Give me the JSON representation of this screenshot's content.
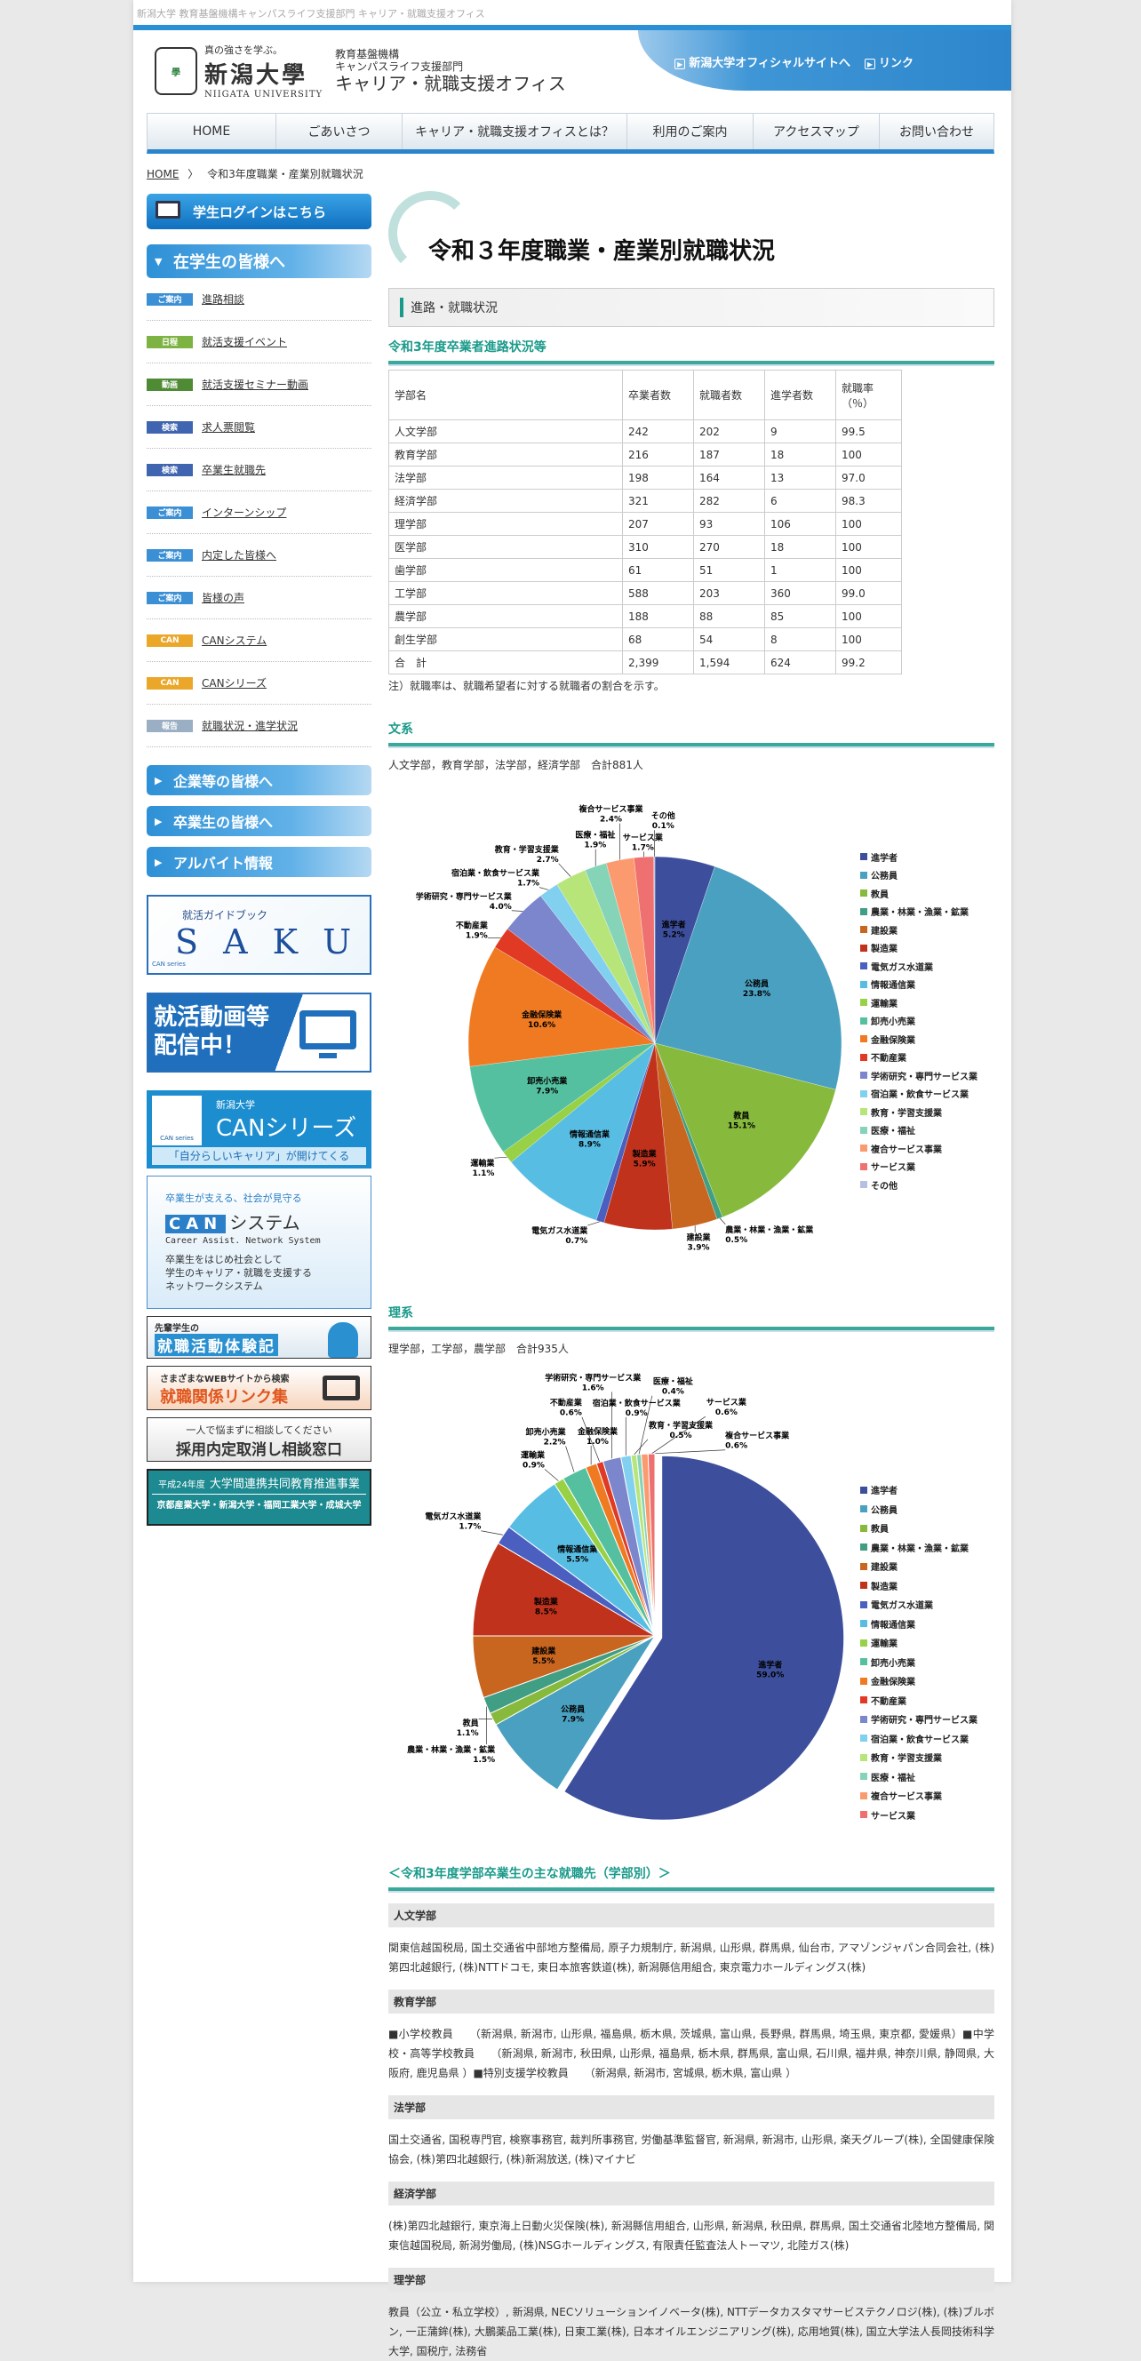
{
  "topstrip": "新潟大学 教育基盤機構キャンパスライフ支援部門 キャリア・就職支援オフィス",
  "logo": {
    "motto": "真の強さを学ぶ。",
    "name": "新潟大學",
    "en": "NIIGATA UNIVERSITY",
    "seal": "學"
  },
  "office": {
    "l1": "教育基盤機構",
    "l2": "キャンパスライフ支援部門",
    "l3": "キャリア・就職支援オフィス"
  },
  "header_links": [
    "新潟大学オフィシャルサイトへ",
    "リンク"
  ],
  "nav": [
    "HOME",
    "ごあいさつ",
    "キャリア・就職支援オフィスとは？",
    "利用のご案内",
    "アクセスマップ",
    "お問い合わせ"
  ],
  "breadcrumb": {
    "home": "HOME",
    "sep": "〉",
    "current": "令和3年度職業・産業別就職状況"
  },
  "sidebar": {
    "login": "学生ログインはこちら",
    "students": "在学生の皆様へ",
    "items": [
      {
        "tag": "ご案内",
        "color": "#3b8fd4",
        "label": "進路相談"
      },
      {
        "tag": "日程",
        "color": "#7cb342",
        "label": "就活支援イベント"
      },
      {
        "tag": "動画",
        "color": "#4f8a34",
        "label": "就活支援セミナー動画"
      },
      {
        "tag": "検索",
        "color": "#3f65b0",
        "label": "求人票閲覧"
      },
      {
        "tag": "検索",
        "color": "#3f65b0",
        "label": "卒業生就職先"
      },
      {
        "tag": "ご案内",
        "color": "#3b8fd4",
        "label": "インターンシップ"
      },
      {
        "tag": "ご案内",
        "color": "#3b8fd4",
        "label": "内定した皆様へ"
      },
      {
        "tag": "ご案内",
        "color": "#3b8fd4",
        "label": "皆様の声"
      },
      {
        "tag": "CAN",
        "color": "#eba72a",
        "label": "CANシステム"
      },
      {
        "tag": "CAN",
        "color": "#eba72a",
        "label": "CANシリーズ"
      },
      {
        "tag": "報告",
        "color": "#9aaec4",
        "label": "就職状況・進学状況"
      }
    ],
    "cats": [
      "企業等の皆様へ",
      "卒業生の皆様へ",
      "アルバイト情報"
    ],
    "saku": {
      "sub": "就活ガイドブック",
      "main": "S A K U",
      "logo": "CAN series"
    },
    "video": {
      "l1": "就活動画等",
      "l2": "配信中！"
    },
    "canseries": {
      "uni": "新潟大学",
      "title": "CANシリーズ",
      "tagline": "「自分らしいキャリア」が開けてくる",
      "logo": "CAN series"
    },
    "cansystem": {
      "top": "卒業生が支える、社会が見守る",
      "title": "CAN",
      "title2": "システム",
      "en": "Career Assist. Network System",
      "d1": "卒業生をはじめ社会として",
      "d2": "学生のキャリア・就職を支援する",
      "d3": "ネットワークシステム"
    },
    "taiken": {
      "sub": "先輩学生の",
      "main": "就職活動体験記"
    },
    "links": {
      "sub": "さまざまなWEBサイトから検索",
      "main": "就職関係リンク集"
    },
    "soudan": {
      "sub": "一人で悩まずに相談してください",
      "main": "採用内定取消し相談窓口"
    },
    "renkei": {
      "year": "平成24年度",
      "main": "大学間連携共同教育推進事業",
      "unis": "京都産業大学・新潟大学・福岡工業大学・成城大学"
    }
  },
  "main": {
    "title": "令和３年度職業・産業別就職状況",
    "section": "進路・就職状況",
    "table_heading": "令和3年度卒業者進路状況等",
    "table": {
      "headers": [
        "学部名",
        "卒業者数",
        "就職者数",
        "進学者数",
        "就職率\n（％）"
      ],
      "rows": [
        [
          "人文学部",
          "242",
          "202",
          "9",
          "99.5"
        ],
        [
          "教育学部",
          "216",
          "187",
          "18",
          "100"
        ],
        [
          "法学部",
          "198",
          "164",
          "13",
          "97.0"
        ],
        [
          "経済学部",
          "321",
          "282",
          "6",
          "98.3"
        ],
        [
          "理学部",
          "207",
          "93",
          "106",
          "100"
        ],
        [
          "医学部",
          "310",
          "270",
          "18",
          "100"
        ],
        [
          "歯学部",
          "61",
          "51",
          "1",
          "100"
        ],
        [
          "工学部",
          "588",
          "203",
          "360",
          "99.0"
        ],
        [
          "農学部",
          "188",
          "88",
          "85",
          "100"
        ],
        [
          "創生学部",
          "68",
          "54",
          "8",
          "100"
        ],
        [
          "合　計",
          "2,399",
          "1,594",
          "624",
          "99.2"
        ]
      ]
    },
    "note": "注）就職率は、就職希望者に対する就職者の割合を示す。",
    "bunkei": {
      "heading": "文系",
      "desc": "人文学部，教育学部，法学部，経済学部　合計881人"
    },
    "rikei": {
      "heading": "理系",
      "desc": "理学部，工学部，農学部　合計935人"
    },
    "employers_heading": "＜令和3年度学部卒業生の主な就職先（学部別）＞",
    "faculties": [
      {
        "name": "人文学部",
        "text": "関東信越国税局, 国土交通省中部地方整備局, 原子力規制庁, 新潟県, 山形県, 群馬県, 仙台市, アマゾンジャパン合同会社, (株)第四北越銀行, (株)NTTドコモ, 東日本旅客鉄道(株), 新潟縣信用組合, 東京電力ホールディングス(株)"
      },
      {
        "name": "教育学部",
        "text": "■小学校教員　　（新潟県, 新潟市, 山形県, 福島県, 栃木県, 茨城県, 富山県, 長野県, 群馬県, 埼玉県, 東京都, 愛媛県）■中学校・高等学校教員　　（新潟県, 新潟市, 秋田県, 山形県, 福島県, 栃木県, 群馬県, 富山県, 石川県, 福井県, 神奈川県, 静岡県, 大阪府, 鹿児島県 ）■特別支援学校教員　　（新潟県, 新潟市, 宮城県, 栃木県, 富山県 ）"
      },
      {
        "name": "法学部",
        "text": "国土交通省, 国税専門官, 検察事務官, 裁判所事務官, 労働基準監督官, 新潟県, 新潟市, 山形県, 楽天グループ(株), 全国健康保険協会, (株)第四北越銀行, (株)新潟放送, (株)マイナビ"
      },
      {
        "name": "経済学部",
        "text": "(株)第四北越銀行, 東京海上日動火災保険(株), 新潟縣信用組合, 山形県, 新潟県, 秋田県, 群馬県, 国土交通省北陸地方整備局, 関東信越国税局, 新潟労働局, (株)NSGホールディングス, 有限責任監査法人トーマツ, 北陸ガス(株)"
      },
      {
        "name": "理学部",
        "text": "教員（公立・私立学校）, 新潟県, NECソリューションイノベータ(株), NTTデータカスタマサービステクノロジ(株), (株)ブルボン, 一正蒲鉾(株), 大鵬薬品工業(株), 日東工業(株), 日本オイルエンジニアリング(株), 応用地質(株), 国立大学法人長岡技術科学大学, 国税庁, 法務省"
      }
    ]
  },
  "chart_data": [
    {
      "type": "pie",
      "title": "文系",
      "start": "12 o'clock, clockwise",
      "legend": "right",
      "categories": [
        "進学者",
        "公務員",
        "教員",
        "農業・林業・漁業・鉱業",
        "建設業",
        "製造業",
        "電気ガス水道業",
        "情報通信業",
        "運輸業",
        "卸売小売業",
        "金融保険業",
        "不動産業",
        "学術研究・専門サービス業",
        "宿泊業・飲食サービス業",
        "教育・学習支援業",
        "医療・福祉",
        "複合サービス事業",
        "サービス業",
        "その他"
      ],
      "values": [
        5.2,
        23.8,
        15.1,
        0.5,
        3.9,
        5.9,
        0.7,
        8.9,
        1.1,
        7.9,
        10.6,
        1.9,
        4.0,
        1.7,
        2.7,
        1.9,
        2.4,
        1.7,
        0.1
      ],
      "colors": [
        "#3d4f9c",
        "#4aa0c0",
        "#86b93c",
        "#3f9e84",
        "#c8651f",
        "#c0321c",
        "#4a5fc0",
        "#58bde3",
        "#98d145",
        "#55c0a0",
        "#ef7a22",
        "#e03a24",
        "#7b86cc",
        "#82d0f0",
        "#b8e57a",
        "#86d4b8",
        "#fb9a6e",
        "#ef7070",
        "#b8bfe0"
      ],
      "unit": "%"
    },
    {
      "type": "pie",
      "title": "理系",
      "start": "12 o'clock, clockwise",
      "legend": "right",
      "exploded": "進学者",
      "categories": [
        "進学者",
        "公務員",
        "教員",
        "農業・林業・漁業・鉱業",
        "建設業",
        "製造業",
        "電気ガス水道業",
        "情報通信業",
        "運輸業",
        "卸売小売業",
        "金融保険業",
        "不動産業",
        "学術研究・専門サービス業",
        "宿泊業・飲食サービス業",
        "教育・学習支援業",
        "医療・福祉",
        "複合サービス事業",
        "サービス業"
      ],
      "values": [
        59.0,
        7.9,
        1.1,
        1.5,
        5.5,
        8.5,
        1.7,
        5.5,
        0.9,
        2.2,
        1.0,
        0.6,
        1.6,
        0.9,
        0.5,
        0.4,
        0.6,
        0.6
      ],
      "colors": [
        "#3d4f9c",
        "#4aa0c0",
        "#86b93c",
        "#3f9e84",
        "#c8651f",
        "#c0321c",
        "#4a5fc0",
        "#58bde3",
        "#98d145",
        "#55c0a0",
        "#ef7a22",
        "#e03a24",
        "#7b86cc",
        "#82d0f0",
        "#b8e57a",
        "#86d4b8",
        "#fb9a6e",
        "#ef7070"
      ],
      "unit": "%"
    }
  ]
}
